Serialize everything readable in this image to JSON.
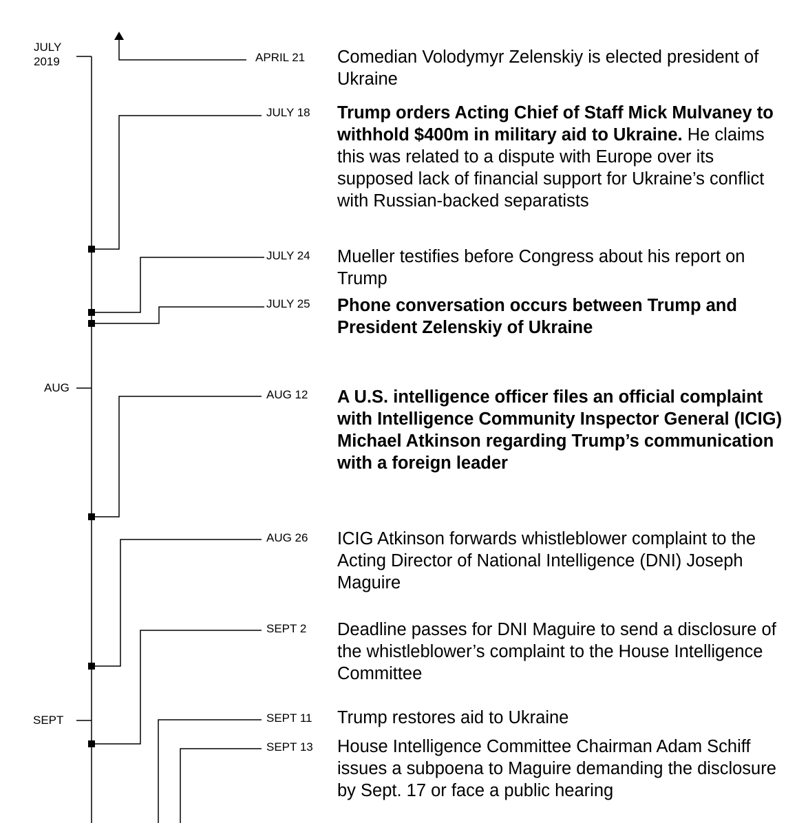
{
  "months": [
    {
      "line1": "JULY",
      "line2": "2019"
    },
    {
      "line1": "AUG"
    },
    {
      "line1": "SEPT"
    }
  ],
  "events": [
    {
      "date": "APRIL 21",
      "bold": "",
      "text": "Comedian Volodymyr Zelenskiy is elected president of Ukraine"
    },
    {
      "date": "JULY 18",
      "bold": "Trump orders Acting Chief of Staff Mick Mulvaney to withhold $400m in military aid to Ukraine.",
      "text": "He claims this was related to a dispute with Europe over its supposed lack of financial support for Ukraine’s conflict with Russian-backed separatists"
    },
    {
      "date": "JULY 24",
      "bold": "",
      "text": "Mueller testifies before Congress about his report on Trump"
    },
    {
      "date": "JULY 25",
      "bold": "Phone conversation occurs between Trump and President Zelenskiy of Ukraine",
      "text": ""
    },
    {
      "date": "AUG 12",
      "bold": "A U.S. intelligence officer files an official complaint with Intelligence Community Inspector General (ICIG) Michael Atkinson regarding Trump’s communication with a foreign leader",
      "text": ""
    },
    {
      "date": "AUG 26",
      "bold": "",
      "text": "ICIG Atkinson forwards whistleblower complaint to the Acting Director of National Intelligence (DNI) Joseph Maguire"
    },
    {
      "date": "SEPT 2",
      "bold": "",
      "text": "Deadline passes for DNI Maguire to send a disclosure of the whistleblower’s complaint to the House Intelligence Committee"
    },
    {
      "date": "SEPT 11",
      "bold": "",
      "text": "Trump restores aid to Ukraine"
    },
    {
      "date": "SEPT 13",
      "bold": "",
      "text": "House Intelligence Committee Chairman Adam Schiff issues a subpoena to Maguire demanding the disclosure by Sept. 17 or face a public hearing"
    }
  ]
}
